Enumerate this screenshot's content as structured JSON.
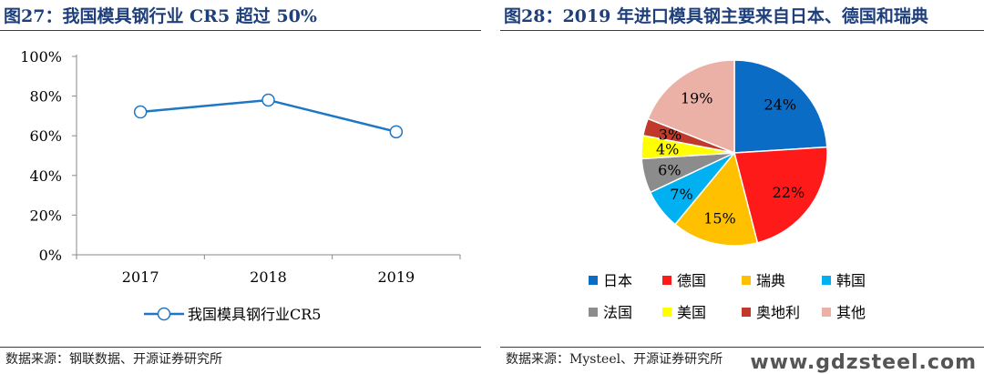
{
  "left": {
    "figure_title": "图27：我国模具钢行业 CR5 超过 50%",
    "source": "数据来源：钢联数据、开源证券研究所"
  },
  "right": {
    "figure_title": "图28：2019 年进口模具钢主要来自日本、德国和瑞典",
    "source": "数据来源：Mysteel、开源证券研究所"
  },
  "watermark": "www.gdzsteel.com",
  "chart_data": [
    {
      "type": "line",
      "x": [
        "2017",
        "2018",
        "2019"
      ],
      "series": [
        {
          "name": "我国模具钢行业CR5",
          "values": [
            72,
            78,
            62
          ],
          "color": "#1f77c4"
        }
      ],
      "yticks": [
        "0%",
        "20%",
        "40%",
        "60%",
        "80%",
        "100%"
      ],
      "ylim": [
        0,
        100
      ],
      "grid": false,
      "legend": "bottom"
    },
    {
      "type": "pie",
      "labels": [
        "日本",
        "德国",
        "瑞典",
        "韩国",
        "法国",
        "美国",
        "奥地利",
        "其他"
      ],
      "values": [
        24,
        22,
        15,
        7,
        6,
        4,
        3,
        19
      ],
      "value_labels": [
        "24%",
        "22%",
        "15%",
        "7%",
        "6%",
        "4%",
        "3%",
        "19%"
      ],
      "colors": [
        "#0b6cc5",
        "#ff1a1a",
        "#ffc000",
        "#00b0f0",
        "#8c8c8c",
        "#ffff00",
        "#c0392b",
        "#ebb1a6"
      ],
      "legend": "bottom"
    }
  ]
}
